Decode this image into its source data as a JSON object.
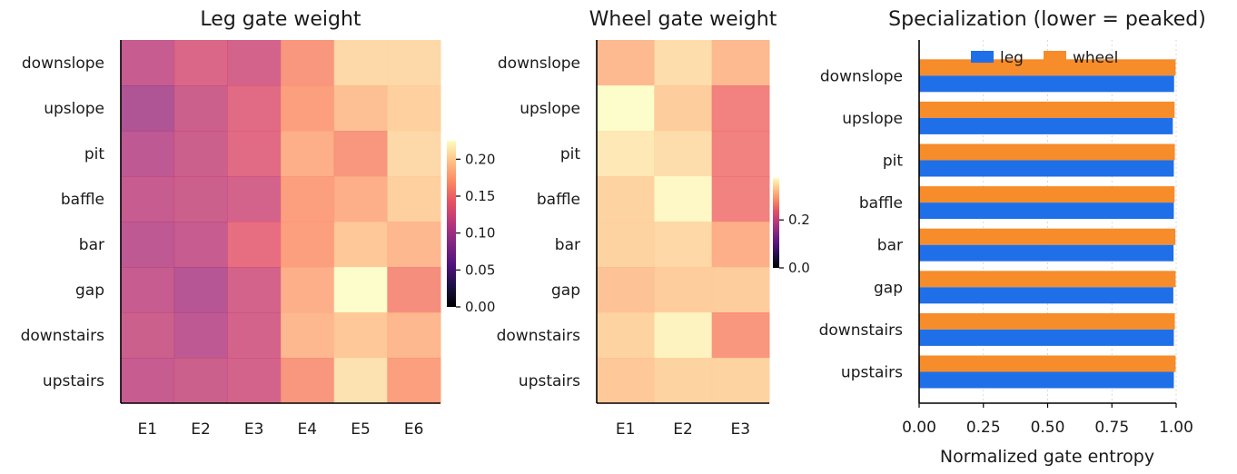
{
  "chart_data": [
    {
      "type": "heatmap",
      "title": "Leg gate weight",
      "rows": [
        "downslope",
        "upslope",
        "pit",
        "baffle",
        "bar",
        "gap",
        "downstairs",
        "upstairs"
      ],
      "columns": [
        "E1",
        "E2",
        "E3",
        "E4",
        "E5",
        "E6"
      ],
      "values": [
        [
          0.115,
          0.13,
          0.125,
          0.165,
          0.205,
          0.205
        ],
        [
          0.1,
          0.12,
          0.135,
          0.17,
          0.19,
          0.2
        ],
        [
          0.11,
          0.12,
          0.135,
          0.18,
          0.165,
          0.205
        ],
        [
          0.115,
          0.12,
          0.125,
          0.17,
          0.18,
          0.2
        ],
        [
          0.11,
          0.115,
          0.14,
          0.17,
          0.195,
          0.185
        ],
        [
          0.115,
          0.105,
          0.125,
          0.18,
          0.225,
          0.16
        ],
        [
          0.12,
          0.11,
          0.125,
          0.185,
          0.195,
          0.185
        ],
        [
          0.115,
          0.12,
          0.125,
          0.165,
          0.21,
          0.17
        ]
      ],
      "colorbar": {
        "min": 0.0,
        "max": 0.225,
        "ticks": [
          "0.00",
          "0.05",
          "0.10",
          "0.15",
          "0.20"
        ],
        "tick_values": [
          0,
          0.05,
          0.1,
          0.15,
          0.2
        ]
      },
      "colormap": "magma"
    },
    {
      "type": "heatmap",
      "title": "Wheel gate weight",
      "rows": [
        "downslope",
        "upslope",
        "pit",
        "baffle",
        "bar",
        "gap",
        "downstairs",
        "upstairs"
      ],
      "columns": [
        "E1",
        "E2",
        "E3"
      ],
      "values": [
        [
          0.31,
          0.345,
          0.31
        ],
        [
          0.375,
          0.33,
          0.255
        ],
        [
          0.355,
          0.345,
          0.255
        ],
        [
          0.335,
          0.37,
          0.255
        ],
        [
          0.335,
          0.34,
          0.3
        ],
        [
          0.32,
          0.33,
          0.33
        ],
        [
          0.335,
          0.365,
          0.275
        ],
        [
          0.325,
          0.335,
          0.335
        ]
      ],
      "colorbar": {
        "min": 0.0,
        "max": 0.375,
        "ticks": [
          "0.0",
          "0.2"
        ],
        "tick_values": [
          0,
          0.2
        ]
      },
      "colormap": "magma"
    },
    {
      "type": "bar",
      "orientation": "horizontal",
      "title": "Specialization (lower = peaked)",
      "categories": [
        "downslope",
        "upslope",
        "pit",
        "baffle",
        "bar",
        "gap",
        "downstairs",
        "upstairs"
      ],
      "series": [
        {
          "name": "leg",
          "color": "#1f6fe8",
          "values": [
            0.992,
            0.987,
            0.991,
            0.991,
            0.99,
            0.989,
            0.991,
            0.991
          ]
        },
        {
          "name": "wheel",
          "color": "#f78c2b",
          "values": [
            0.998,
            0.994,
            0.995,
            0.994,
            0.997,
            0.998,
            0.995,
            0.998
          ]
        }
      ],
      "xlabel": "Normalized gate entropy",
      "xlim": [
        0,
        1.0
      ],
      "xticks": [
        "0.00",
        "0.25",
        "0.50",
        "0.75",
        "1.00"
      ],
      "xtick_values": [
        0,
        0.25,
        0.5,
        0.75,
        1.0
      ],
      "grid": "x dotted",
      "legend": "top"
    }
  ]
}
